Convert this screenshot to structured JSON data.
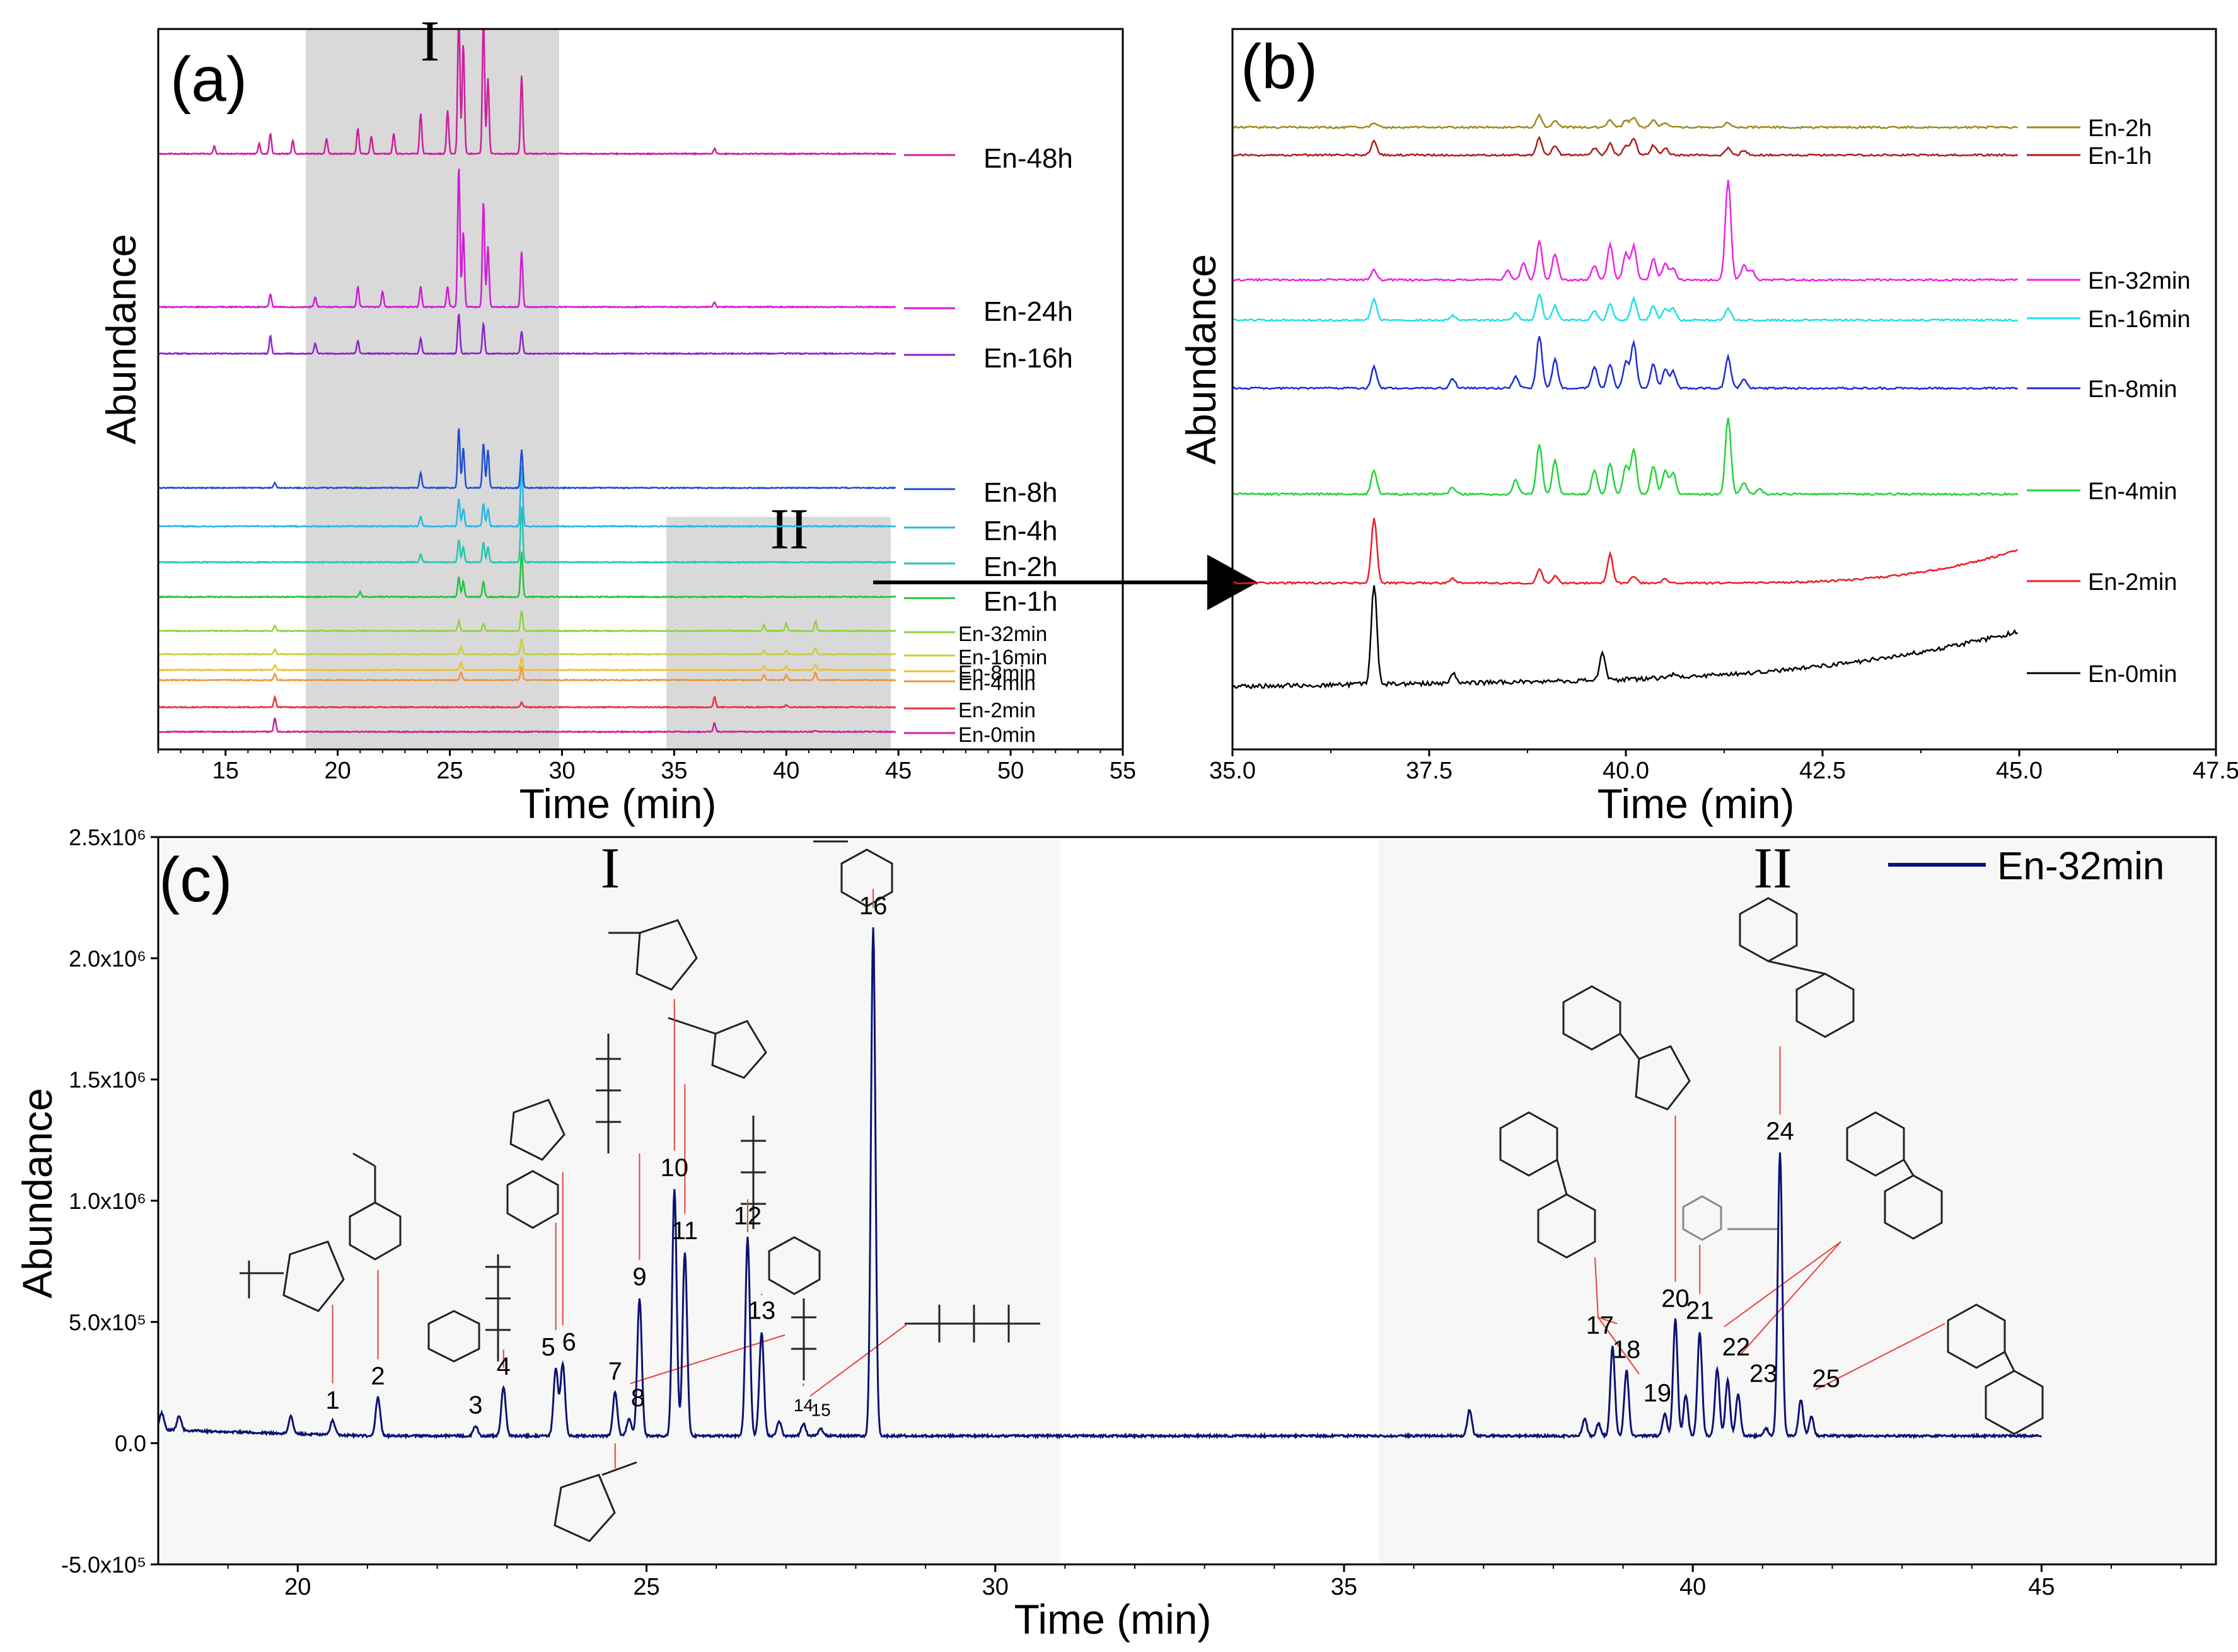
{
  "colors": {
    "panel_a_series": [
      "#cc1f9c",
      "#e8323c",
      "#f2933c",
      "#f0c02a",
      "#c8cf3a",
      "#8fd13f",
      "#22c33f",
      "#22c6b0",
      "#26b7e4",
      "#1f4fd1",
      "#8b23c9",
      "#d21ad6"
    ],
    "panel_b_series": [
      "#000000",
      "#ee1c24",
      "#22d23a",
      "#1c2bd6",
      "#1fe0e6",
      "#ee22e6",
      "#b01c1c",
      "#9c8a1a"
    ],
    "panel_c_line": "#0d1273",
    "shade": "#d9d9d9",
    "shade_c": "#f7f7f7",
    "bracket": "#e8403c"
  },
  "chart_data": [
    {
      "panel": "a",
      "type": "line",
      "panel_label": "(a)",
      "xlabel": "Time (min)",
      "ylabel": "Abundance",
      "xlim": [
        12,
        55
      ],
      "xticks": [
        "15",
        "20",
        "25",
        "30",
        "35",
        "40",
        "45",
        "50",
        "55"
      ],
      "region_labels": [
        "I",
        "II"
      ],
      "regions": [
        [
          18.7,
          30.0
        ],
        [
          34.8,
          44.8
        ]
      ],
      "series": [
        {
          "name": "En-0min",
          "peaks": [
            [
              17.2,
              0.55
            ],
            [
              36.8,
              0.35
            ],
            [
              41.3,
              0.05
            ]
          ]
        },
        {
          "name": "En-2min",
          "peaks": [
            [
              17.2,
              0.4
            ],
            [
              28.2,
              0.2
            ],
            [
              36.8,
              0.4
            ],
            [
              40.0,
              0.1
            ]
          ]
        },
        {
          "name": "En-4min",
          "peaks": [
            [
              17.2,
              0.25
            ],
            [
              25.5,
              0.3
            ],
            [
              28.2,
              0.5
            ],
            [
              39.0,
              0.2
            ],
            [
              40.0,
              0.2
            ],
            [
              41.3,
              0.3
            ]
          ]
        },
        {
          "name": "En-8min",
          "peaks": [
            [
              17.2,
              0.2
            ],
            [
              25.5,
              0.3
            ],
            [
              28.2,
              0.5
            ],
            [
              39.0,
              0.15
            ],
            [
              40.0,
              0.15
            ],
            [
              41.3,
              0.2
            ]
          ]
        },
        {
          "name": "En-16min",
          "peaks": [
            [
              17.2,
              0.2
            ],
            [
              25.5,
              0.3
            ],
            [
              28.2,
              0.6
            ],
            [
              39.0,
              0.15
            ],
            [
              40.0,
              0.15
            ],
            [
              41.3,
              0.25
            ]
          ]
        },
        {
          "name": "En-32min",
          "peaks": [
            [
              17.2,
              0.2
            ],
            [
              25.4,
              0.4
            ],
            [
              26.5,
              0.3
            ],
            [
              28.2,
              0.8
            ],
            [
              39.0,
              0.25
            ],
            [
              40.0,
              0.3
            ],
            [
              41.3,
              0.4
            ]
          ]
        },
        {
          "name": "En-1h",
          "peaks": [
            [
              25.4,
              0.8
            ],
            [
              25.6,
              0.6
            ],
            [
              26.5,
              0.6
            ],
            [
              28.2,
              1.8
            ],
            [
              21.0,
              0.2
            ]
          ]
        },
        {
          "name": "En-2h",
          "peaks": [
            [
              23.7,
              0.3
            ],
            [
              25.4,
              0.9
            ],
            [
              25.6,
              0.6
            ],
            [
              26.5,
              0.8
            ],
            [
              26.7,
              0.6
            ],
            [
              28.2,
              2.2
            ]
          ]
        },
        {
          "name": "En-4h",
          "peaks": [
            [
              23.7,
              0.4
            ],
            [
              25.4,
              1.1
            ],
            [
              25.6,
              0.7
            ],
            [
              26.5,
              0.9
            ],
            [
              26.7,
              0.7
            ],
            [
              28.2,
              2.4
            ]
          ]
        },
        {
          "name": "En-8h",
          "peaks": [
            [
              17.2,
              0.2
            ],
            [
              23.7,
              0.6
            ],
            [
              25.4,
              2.4
            ],
            [
              25.6,
              1.6
            ],
            [
              26.5,
              1.8
            ],
            [
              26.7,
              1.5
            ],
            [
              28.2,
              1.5
            ]
          ]
        },
        {
          "name": "En-16h",
          "peaks": [
            [
              17.0,
              0.7
            ],
            [
              19.0,
              0.4
            ],
            [
              20.9,
              0.5
            ],
            [
              23.7,
              0.6
            ],
            [
              25.4,
              1.6
            ],
            [
              26.5,
              1.2
            ],
            [
              28.2,
              0.9
            ]
          ]
        },
        {
          "name": "En-24h",
          "peaks": [
            [
              17.0,
              0.5
            ],
            [
              19.0,
              0.4
            ],
            [
              20.9,
              0.8
            ],
            [
              22.0,
              0.6
            ],
            [
              23.7,
              0.8
            ],
            [
              24.9,
              0.8
            ],
            [
              25.4,
              5.6
            ],
            [
              25.6,
              3.0
            ],
            [
              26.5,
              4.2
            ],
            [
              26.7,
              2.4
            ],
            [
              28.2,
              2.2
            ],
            [
              36.8,
              0.2
            ]
          ]
        },
        {
          "name": "En-48h",
          "peaks": [
            [
              14.5,
              0.3
            ],
            [
              16.5,
              0.4
            ],
            [
              17.0,
              0.8
            ],
            [
              18.0,
              0.5
            ],
            [
              19.5,
              0.6
            ],
            [
              20.9,
              1.0
            ],
            [
              21.5,
              0.7
            ],
            [
              22.5,
              0.8
            ],
            [
              23.7,
              1.6
            ],
            [
              24.9,
              1.7
            ],
            [
              25.4,
              5.8
            ],
            [
              25.6,
              4.4
            ],
            [
              26.5,
              5.4
            ],
            [
              26.7,
              3.0
            ],
            [
              28.2,
              3.1
            ],
            [
              36.8,
              0.2
            ]
          ]
        }
      ]
    },
    {
      "panel": "b",
      "type": "line",
      "panel_label": "(b)",
      "xlabel": "Time (min)",
      "ylabel": "Abundance",
      "xlim": [
        35.0,
        47.5
      ],
      "xticks": [
        "35.0",
        "37.5",
        "40.0",
        "42.5",
        "45.0",
        "47.5"
      ],
      "series": [
        {
          "name": "En-0min",
          "peaks": [
            [
              36.8,
              4.2
            ],
            [
              37.8,
              0.4
            ],
            [
              39.7,
              1.2
            ],
            [
              40.6,
              0.1
            ]
          ]
        },
        {
          "name": "En-2min",
          "peaks": [
            [
              36.8,
              2.7
            ],
            [
              37.8,
              0.2
            ],
            [
              38.9,
              0.6
            ],
            [
              39.1,
              0.3
            ],
            [
              39.8,
              1.2
            ],
            [
              40.1,
              0.3
            ],
            [
              40.5,
              0.2
            ]
          ]
        },
        {
          "name": "En-4min",
          "peaks": [
            [
              36.8,
              1.0
            ],
            [
              37.8,
              0.3
            ],
            [
              38.6,
              0.6
            ],
            [
              38.9,
              2.1
            ],
            [
              39.1,
              1.4
            ],
            [
              39.6,
              1.0
            ],
            [
              39.8,
              1.3
            ],
            [
              40.0,
              1.2
            ],
            [
              40.1,
              1.9
            ],
            [
              40.35,
              1.2
            ],
            [
              40.5,
              1.0
            ],
            [
              40.6,
              0.9
            ],
            [
              41.3,
              3.2
            ],
            [
              41.5,
              0.5
            ],
            [
              41.7,
              0.2
            ]
          ]
        },
        {
          "name": "En-8min",
          "peaks": [
            [
              36.8,
              0.9
            ],
            [
              37.8,
              0.4
            ],
            [
              38.6,
              0.5
            ],
            [
              38.9,
              2.2
            ],
            [
              39.1,
              1.2
            ],
            [
              39.6,
              0.9
            ],
            [
              39.8,
              1.0
            ],
            [
              40.0,
              1.1
            ],
            [
              40.1,
              1.9
            ],
            [
              40.35,
              1.0
            ],
            [
              40.5,
              0.8
            ],
            [
              40.6,
              0.7
            ],
            [
              41.3,
              1.3
            ],
            [
              41.5,
              0.4
            ]
          ]
        },
        {
          "name": "En-16min",
          "peaks": [
            [
              36.8,
              0.9
            ],
            [
              37.8,
              0.2
            ],
            [
              38.6,
              0.3
            ],
            [
              38.9,
              1.1
            ],
            [
              39.1,
              0.6
            ],
            [
              39.6,
              0.4
            ],
            [
              39.8,
              0.7
            ],
            [
              40.1,
              0.9
            ],
            [
              40.35,
              0.6
            ],
            [
              40.5,
              0.5
            ],
            [
              40.6,
              0.5
            ],
            [
              41.3,
              0.5
            ]
          ]
        },
        {
          "name": "En-32min",
          "peaks": [
            [
              36.8,
              0.4
            ],
            [
              38.5,
              0.4
            ],
            [
              38.7,
              0.7
            ],
            [
              38.9,
              1.6
            ],
            [
              39.1,
              1.1
            ],
            [
              39.6,
              0.6
            ],
            [
              39.8,
              1.5
            ],
            [
              40.0,
              1.1
            ],
            [
              40.1,
              1.4
            ],
            [
              40.35,
              0.9
            ],
            [
              40.5,
              0.7
            ],
            [
              40.6,
              0.5
            ],
            [
              41.3,
              4.2
            ],
            [
              41.5,
              0.6
            ],
            [
              41.6,
              0.4
            ]
          ]
        },
        {
          "name": "En-1h",
          "peaks": [
            [
              36.8,
              0.6
            ],
            [
              38.9,
              0.7
            ],
            [
              39.1,
              0.4
            ],
            [
              39.6,
              0.3
            ],
            [
              39.8,
              0.5
            ],
            [
              40.0,
              0.4
            ],
            [
              40.1,
              0.7
            ],
            [
              40.35,
              0.4
            ],
            [
              40.5,
              0.3
            ],
            [
              41.3,
              0.3
            ],
            [
              41.5,
              0.2
            ]
          ]
        },
        {
          "name": "En-2h",
          "peaks": [
            [
              36.8,
              0.2
            ],
            [
              38.9,
              0.5
            ],
            [
              39.1,
              0.3
            ],
            [
              39.8,
              0.3
            ],
            [
              40.0,
              0.3
            ],
            [
              40.1,
              0.4
            ],
            [
              40.35,
              0.3
            ],
            [
              40.5,
              0.2
            ],
            [
              41.3,
              0.2
            ]
          ]
        }
      ]
    },
    {
      "panel": "c",
      "type": "line",
      "panel_label": "(c)",
      "legend": "En-32min",
      "legend_position": "top-right",
      "xlabel": "Time (min)",
      "ylabel": "Abundance",
      "xlim": [
        18,
        47.5
      ],
      "ylim": [
        -500000,
        2500000
      ],
      "xticks": [
        "20",
        "25",
        "30",
        "35",
        "40",
        "45"
      ],
      "yticks": [
        "-5.0x10⁵",
        "0.0",
        "5.0x10⁵",
        "1.0x10⁶",
        "1.5x10⁶",
        "2.0x10⁶",
        "2.5x10⁶"
      ],
      "ytick_values": [
        -500000,
        0,
        500000,
        1000000,
        1500000,
        2000000,
        2500000
      ],
      "region_labels": [
        "I",
        "II"
      ],
      "regions": [
        [
          18,
          31.1
        ],
        [
          35.7,
          47.5
        ]
      ],
      "baseline": 30000,
      "peaks": [
        {
          "label": "1",
          "x": 20.5,
          "y": 90000
        },
        {
          "label": "2",
          "x": 21.15,
          "y": 190000
        },
        {
          "label": "3",
          "x": 22.55,
          "y": 70000
        },
        {
          "label": "4",
          "x": 22.95,
          "y": 230000
        },
        {
          "label": "5",
          "x": 23.7,
          "y": 310000
        },
        {
          "label": "6",
          "x": 23.8,
          "y": 330000
        },
        {
          "label": "7",
          "x": 24.55,
          "y": 210000
        },
        {
          "label": "8",
          "x": 24.75,
          "y": 100000
        },
        {
          "label": "9",
          "x": 24.9,
          "y": 600000
        },
        {
          "label": "10",
          "x": 25.4,
          "y": 1050000
        },
        {
          "label": "11",
          "x": 25.55,
          "y": 790000
        },
        {
          "label": "12",
          "x": 26.45,
          "y": 850000
        },
        {
          "label": "13",
          "x": 26.65,
          "y": 460000
        },
        {
          "label": "14",
          "x": 27.25,
          "y": 80000
        },
        {
          "label": "15",
          "x": 27.5,
          "y": 60000
        },
        {
          "label": "16",
          "x": 28.25,
          "y": 2130000
        },
        {
          "label": "17",
          "x": 38.85,
          "y": 400000
        },
        {
          "label": "18",
          "x": 39.05,
          "y": 300000
        },
        {
          "label": "19",
          "x": 39.6,
          "y": 120000
        },
        {
          "label": "20",
          "x": 39.75,
          "y": 510000
        },
        {
          "label": "21",
          "x": 40.1,
          "y": 460000
        },
        {
          "label": "22",
          "x": 40.35,
          "y": 310000
        },
        {
          "label": "23",
          "x": 40.65,
          "y": 200000
        },
        {
          "label": "24",
          "x": 41.25,
          "y": 1200000
        },
        {
          "label": "25",
          "x": 41.55,
          "y": 180000
        }
      ],
      "minor_peaks": [
        {
          "x": 18.05,
          "y": 100000
        },
        {
          "x": 18.3,
          "y": 90000
        },
        {
          "x": 19.9,
          "y": 100000
        },
        {
          "x": 26.9,
          "y": 90000
        },
        {
          "x": 36.8,
          "y": 140000
        },
        {
          "x": 38.45,
          "y": 100000
        },
        {
          "x": 38.65,
          "y": 80000
        },
        {
          "x": 39.9,
          "y": 200000
        },
        {
          "x": 40.5,
          "y": 260000
        },
        {
          "x": 41.05,
          "y": 60000
        },
        {
          "x": 41.7,
          "y": 110000
        }
      ]
    }
  ]
}
